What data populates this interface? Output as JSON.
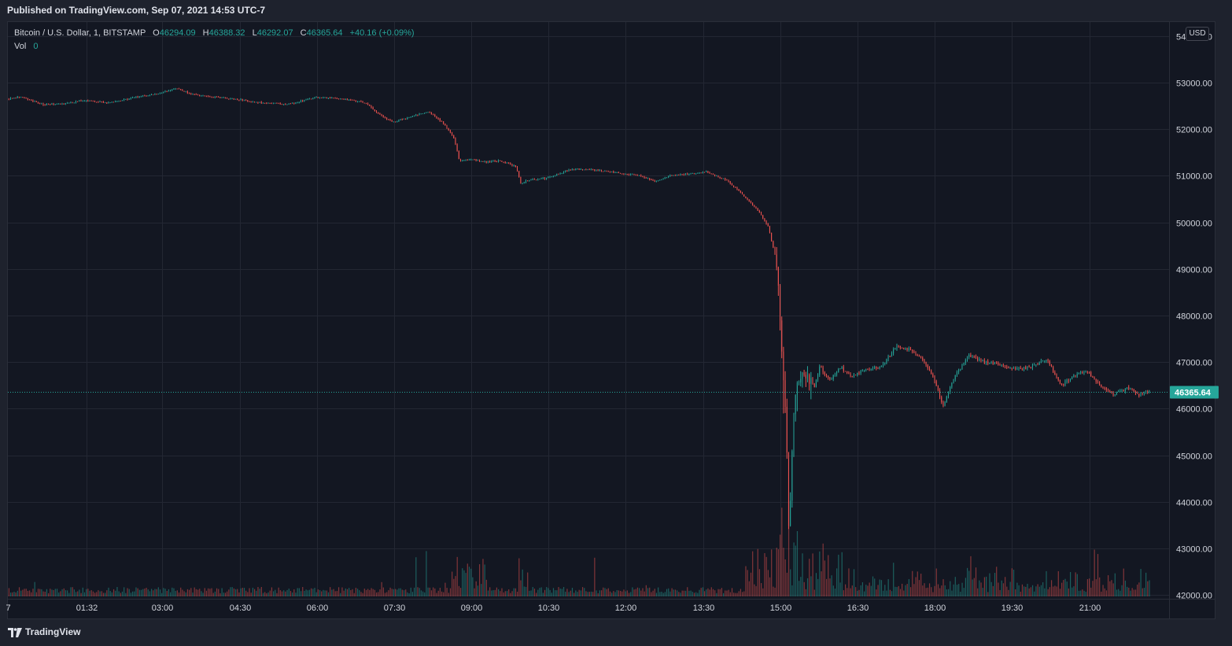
{
  "header": {
    "published": "Published on TradingView.com, Sep 07, 2021 14:53 UTC-7"
  },
  "legend": {
    "symbol": "Bitcoin / U.S. Dollar, 1, BITSTAMP",
    "open_label": "O",
    "open": "46294.09",
    "high_label": "H",
    "high": "46388.32",
    "low_label": "L",
    "low": "46292.07",
    "close_label": "C",
    "close": "46365.64",
    "change": "+40.16 (+0.09%)",
    "vol_label": "Vol",
    "vol": "0"
  },
  "currency": "USD",
  "footer": {
    "brand": "TradingView"
  },
  "colors": {
    "up": "#26a69a",
    "down": "#ef5350",
    "background": "#131722",
    "grid": "#232733",
    "text": "#d1d4dc"
  },
  "chart_data": {
    "type": "candlestick",
    "symbol": "Bitcoin / U.S. Dollar",
    "interval": "1",
    "exchange": "BITSTAMP",
    "currency": "USD",
    "last_price": "46365.64",
    "y_ticks": [
      "42000.00",
      "43000.00",
      "44000.00",
      "45000.00",
      "46000.00",
      "47000.00",
      "48000.00",
      "49000.00",
      "50000.00",
      "51000.00",
      "52000.00",
      "53000.00",
      "54000.00"
    ],
    "ylim": [
      41970,
      54300
    ],
    "x_ticks": [
      {
        "label": "7",
        "hours": 0
      },
      {
        "label": "01:32",
        "hours": 1.533
      },
      {
        "label": "03:00",
        "hours": 3
      },
      {
        "label": "04:30",
        "hours": 4.5
      },
      {
        "label": "06:00",
        "hours": 6
      },
      {
        "label": "07:30",
        "hours": 7.5
      },
      {
        "label": "09:00",
        "hours": 9
      },
      {
        "label": "10:30",
        "hours": 10.5
      },
      {
        "label": "12:00",
        "hours": 12
      },
      {
        "label": "13:30",
        "hours": 13.5
      },
      {
        "label": "15:00",
        "hours": 15
      },
      {
        "label": "16:30",
        "hours": 16.5
      },
      {
        "label": "18:00",
        "hours": 18
      },
      {
        "label": "19:30",
        "hours": 19.5
      },
      {
        "label": "21:00",
        "hours": 21
      }
    ],
    "xlim_hours": [
      0,
      22.55
    ],
    "grid": true,
    "price_path": [
      [
        0.02,
        52650
      ],
      [
        0.3,
        52700
      ],
      [
        0.7,
        52530
      ],
      [
        1.2,
        52550
      ],
      [
        1.5,
        52620
      ],
      [
        2.0,
        52560
      ],
      [
        2.5,
        52680
      ],
      [
        3.0,
        52780
      ],
      [
        3.3,
        52880
      ],
      [
        3.6,
        52750
      ],
      [
        4.0,
        52700
      ],
      [
        4.5,
        52640
      ],
      [
        5.0,
        52560
      ],
      [
        5.5,
        52540
      ],
      [
        6.0,
        52680
      ],
      [
        6.5,
        52660
      ],
      [
        7.0,
        52560
      ],
      [
        7.2,
        52350
      ],
      [
        7.5,
        52150
      ],
      [
        7.9,
        52280
      ],
      [
        8.2,
        52380
      ],
      [
        8.5,
        52120
      ],
      [
        8.7,
        51800
      ],
      [
        8.8,
        51320
      ],
      [
        9.0,
        51350
      ],
      [
        9.3,
        51300
      ],
      [
        9.6,
        51320
      ],
      [
        9.9,
        51200
      ],
      [
        10.0,
        50800
      ],
      [
        10.1,
        50900
      ],
      [
        10.5,
        50950
      ],
      [
        11.0,
        51150
      ],
      [
        11.5,
        51120
      ],
      [
        12.0,
        51040
      ],
      [
        12.3,
        51010
      ],
      [
        12.6,
        50880
      ],
      [
        12.9,
        51000
      ],
      [
        13.3,
        51050
      ],
      [
        13.6,
        51080
      ],
      [
        14.0,
        50900
      ],
      [
        14.3,
        50600
      ],
      [
        14.6,
        50250
      ],
      [
        14.8,
        49900
      ],
      [
        14.95,
        49200
      ],
      [
        15.0,
        48600
      ],
      [
        15.05,
        47500
      ],
      [
        15.15,
        45800
      ],
      [
        15.2,
        43200
      ],
      [
        15.28,
        45600
      ],
      [
        15.35,
        46600
      ],
      [
        15.5,
        46800
      ],
      [
        15.7,
        46480
      ],
      [
        15.8,
        46900
      ],
      [
        16.0,
        46600
      ],
      [
        16.2,
        46900
      ],
      [
        16.4,
        46700
      ],
      [
        16.7,
        46830
      ],
      [
        17.0,
        46900
      ],
      [
        17.3,
        47350
      ],
      [
        17.6,
        47250
      ],
      [
        17.8,
        47050
      ],
      [
        18.0,
        46700
      ],
      [
        18.2,
        46050
      ],
      [
        18.4,
        46650
      ],
      [
        18.7,
        47150
      ],
      [
        19.0,
        47000
      ],
      [
        19.3,
        46950
      ],
      [
        19.6,
        46850
      ],
      [
        19.9,
        46900
      ],
      [
        20.2,
        47050
      ],
      [
        20.5,
        46500
      ],
      [
        20.8,
        46750
      ],
      [
        21.0,
        46800
      ],
      [
        21.2,
        46550
      ],
      [
        21.5,
        46300
      ],
      [
        21.8,
        46450
      ],
      [
        22.0,
        46300
      ],
      [
        22.1,
        46350
      ],
      [
        22.2,
        46366
      ]
    ]
  }
}
